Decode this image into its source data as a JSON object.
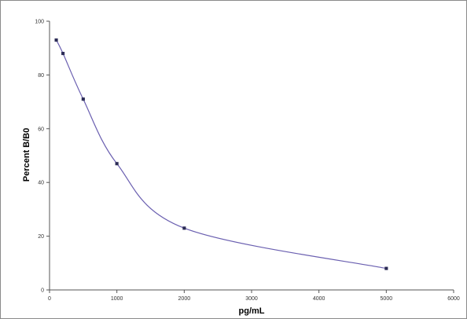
{
  "chart_data": {
    "type": "scatter",
    "title": "",
    "xlabel": "pg/mL",
    "ylabel": "Percent B/B0",
    "xlim": [
      0,
      6000
    ],
    "ylim": [
      0,
      100
    ],
    "x_ticks": [
      0,
      1000,
      2000,
      3000,
      4000,
      5000,
      6000
    ],
    "y_ticks": [
      0,
      20,
      40,
      60,
      80,
      100
    ],
    "grid": false,
    "legend": "none",
    "smoothed_line": true,
    "series": [
      {
        "x": [
          100,
          200,
          500,
          1000,
          2000,
          5000
        ],
        "y": [
          93,
          88,
          71,
          47,
          23,
          8
        ]
      }
    ],
    "colors": {
      "line": "#6a5fb0",
      "marker": "#2b2b55",
      "axis": "#555555"
    }
  }
}
